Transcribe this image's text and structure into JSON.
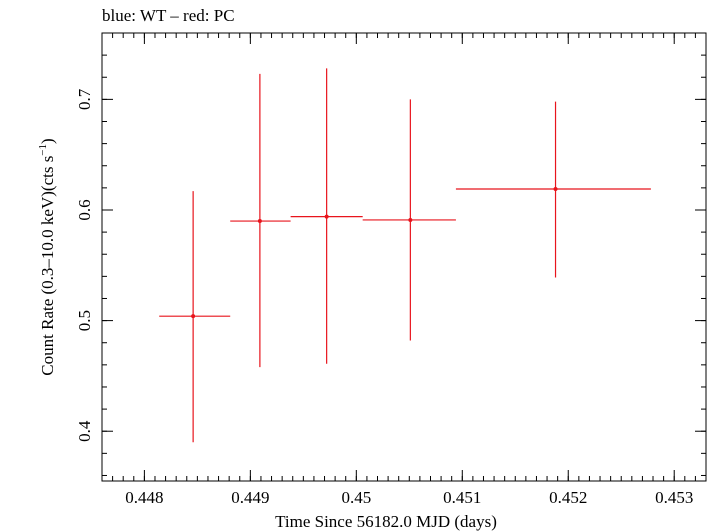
{
  "chart_data": {
    "type": "scatter",
    "title": "blue: WT – red: PC",
    "xlabel": "Time Since 56182.0 MJD (days)",
    "ylabel": "Count Rate (0.3–10.0 keV)(cts s",
    "ylabel_sup": "−1",
    "ylabel_tail": ")",
    "xlim": [
      0.4476,
      0.4533
    ],
    "ylim": [
      0.355,
      0.76
    ],
    "x_ticks": [
      0.448,
      0.449,
      0.45,
      0.451,
      0.452,
      0.453
    ],
    "x_tick_labels": [
      "0.448",
      "0.449",
      "0.45",
      "0.451",
      "0.452",
      "0.453"
    ],
    "y_ticks": [
      0.4,
      0.5,
      0.6,
      0.7
    ],
    "y_tick_labels": [
      "0.4",
      "0.5",
      "0.6",
      "0.7"
    ],
    "x_minor_step": 0.0001,
    "y_minor_step": 0.02,
    "grid": false,
    "series": [
      {
        "name": "PC",
        "color": "#e8141c",
        "points": [
          {
            "x": 0.44846,
            "xlo": 0.44814,
            "xhi": 0.44881,
            "y": 0.504,
            "ylo": 0.39,
            "yhi": 0.617
          },
          {
            "x": 0.44909,
            "xlo": 0.44881,
            "xhi": 0.44938,
            "y": 0.59,
            "ylo": 0.458,
            "yhi": 0.723
          },
          {
            "x": 0.44972,
            "xlo": 0.44938,
            "xhi": 0.45006,
            "y": 0.594,
            "ylo": 0.461,
            "yhi": 0.728
          },
          {
            "x": 0.45051,
            "xlo": 0.45006,
            "xhi": 0.45094,
            "y": 0.591,
            "ylo": 0.482,
            "yhi": 0.7
          },
          {
            "x": 0.45188,
            "xlo": 0.45094,
            "xhi": 0.45278,
            "y": 0.619,
            "ylo": 0.539,
            "yhi": 0.698
          }
        ]
      }
    ]
  }
}
